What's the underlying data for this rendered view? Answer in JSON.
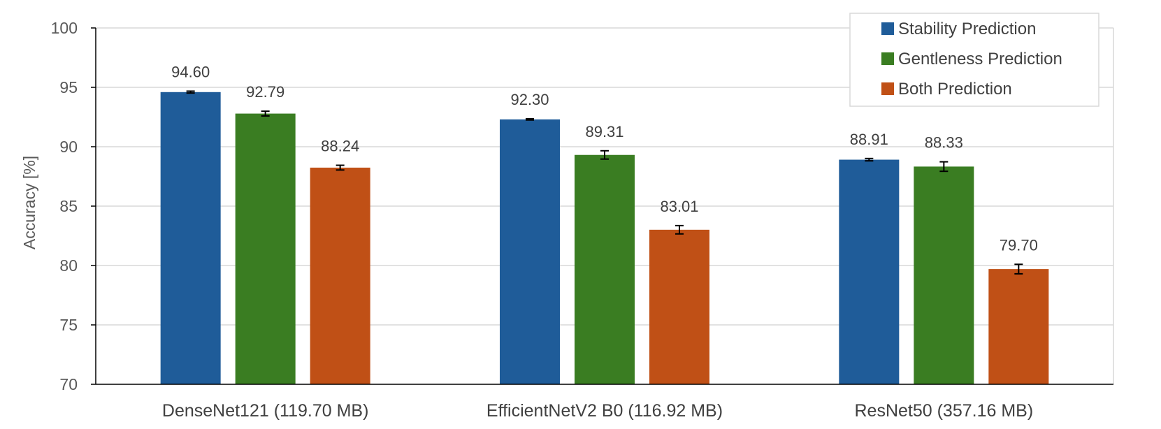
{
  "chart_data": {
    "type": "bar",
    "ylabel": "Accuracy [%]",
    "ylim": [
      70,
      100
    ],
    "yticks": [
      70,
      75,
      80,
      85,
      90,
      95,
      100
    ],
    "grid": true,
    "legend_position": "top-right",
    "categories": [
      "DenseNet121 (119.70 MB)",
      "EfficientNetV2 B0 (116.92 MB)",
      "ResNet50 (357.16 MB)"
    ],
    "series": [
      {
        "name": "Stability Prediction",
        "color": "#1f5c99",
        "values": [
          94.6,
          92.3,
          88.91
        ],
        "labels": [
          "94.60",
          "92.30",
          "88.91"
        ],
        "errors": [
          0.08,
          0.05,
          0.1
        ]
      },
      {
        "name": "Gentleness Prediction",
        "color": "#3a7d22",
        "values": [
          92.79,
          89.31,
          88.33
        ],
        "labels": [
          "92.79",
          "89.31",
          "88.33"
        ],
        "errors": [
          0.2,
          0.35,
          0.4
        ]
      },
      {
        "name": "Both Prediction",
        "color": "#c05016",
        "values": [
          88.24,
          83.01,
          79.7
        ],
        "labels": [
          "88.24",
          "83.01",
          "79.70"
        ],
        "errors": [
          0.2,
          0.35,
          0.4
        ]
      }
    ]
  }
}
